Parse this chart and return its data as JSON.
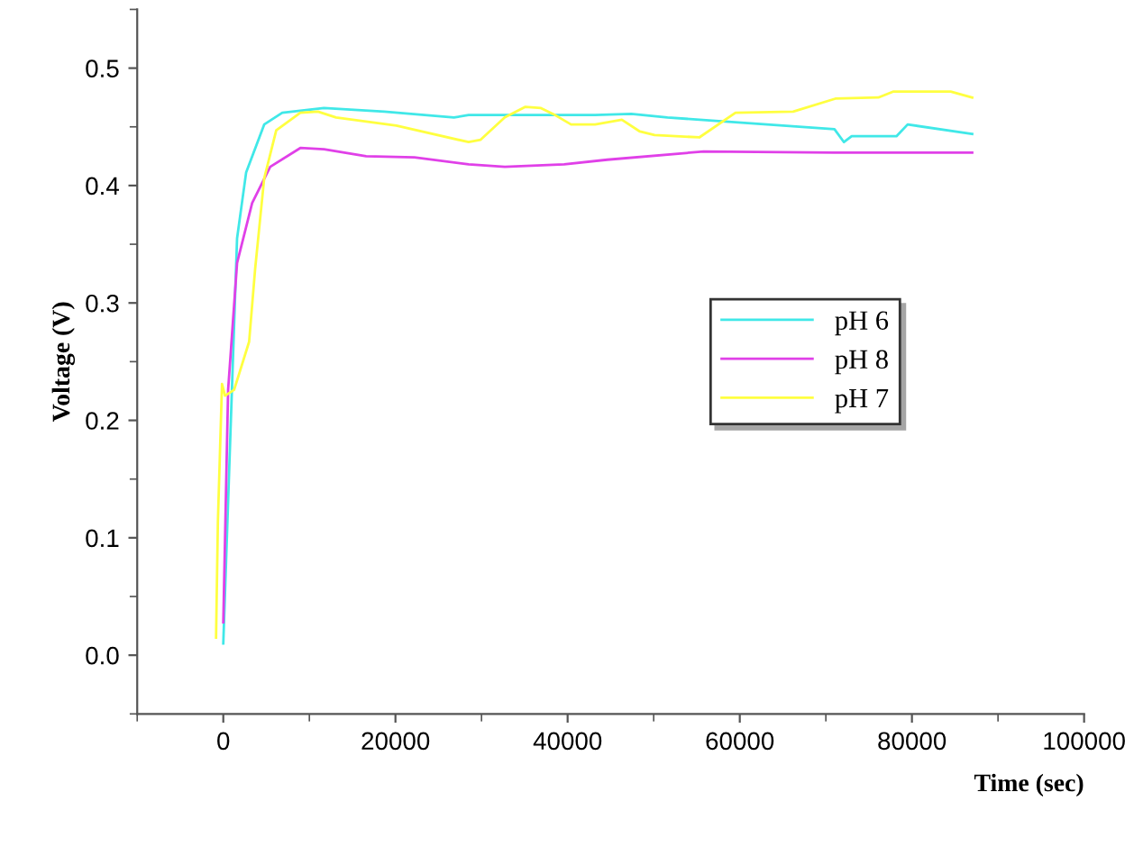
{
  "chart_data": {
    "type": "line",
    "xlabel": "Time (sec)",
    "ylabel": "Voltage (V)",
    "xlim": [
      -10000,
      100000
    ],
    "xticks": [
      0,
      20000,
      40000,
      60000,
      80000,
      100000
    ],
    "ylim": [
      -0.05,
      0.55
    ],
    "yticks": [
      {
        "value": 0.0,
        "label": "0.0"
      },
      0.1,
      0.2,
      0.3,
      0.4,
      0.5
    ],
    "grid": false,
    "legend": "right",
    "marker": "none",
    "line_style": "solid",
    "series": [
      {
        "name": "pH 6",
        "color": "#40e8e8",
        "x": [
          0,
          1600,
          2650,
          4750,
          6850,
          11700,
          18700,
          26800,
          28500,
          43200,
          47400,
          51600,
          71000,
          72100,
          73000,
          78200,
          79500,
          87000
        ],
        "values": [
          0.01,
          0.355,
          0.411,
          0.452,
          0.462,
          0.466,
          0.463,
          0.458,
          0.46,
          0.46,
          0.461,
          0.458,
          0.448,
          0.437,
          0.442,
          0.442,
          0.452,
          0.444
        ]
      },
      {
        "name": "pH 8",
        "color": "#e040e8",
        "x": [
          0,
          560,
          1600,
          3350,
          5450,
          8950,
          11700,
          16600,
          22200,
          28500,
          32700,
          39600,
          44600,
          55800,
          71000,
          87000
        ],
        "values": [
          0.028,
          0.226,
          0.334,
          0.385,
          0.416,
          0.432,
          0.431,
          0.425,
          0.424,
          0.418,
          0.416,
          0.418,
          0.422,
          0.429,
          0.428,
          0.428
        ]
      },
      {
        "name": "pH 7",
        "color": "#ffff40",
        "x": [
          -840,
          -630,
          -150,
          200,
          1260,
          3000,
          3700,
          4750,
          6150,
          8950,
          11000,
          13100,
          20100,
          28500,
          29900,
          32700,
          35100,
          36900,
          38300,
          40400,
          43200,
          46300,
          48400,
          50100,
          55300,
          59500,
          66200,
          71100,
          76100,
          77800,
          84500,
          87000
        ],
        "values": [
          0.015,
          0.113,
          0.231,
          0.221,
          0.226,
          0.267,
          0.329,
          0.406,
          0.447,
          0.462,
          0.463,
          0.458,
          0.451,
          0.437,
          0.439,
          0.458,
          0.467,
          0.466,
          0.461,
          0.452,
          0.452,
          0.456,
          0.446,
          0.443,
          0.441,
          0.462,
          0.463,
          0.474,
          0.475,
          0.48,
          0.48,
          0.475
        ]
      }
    ]
  }
}
